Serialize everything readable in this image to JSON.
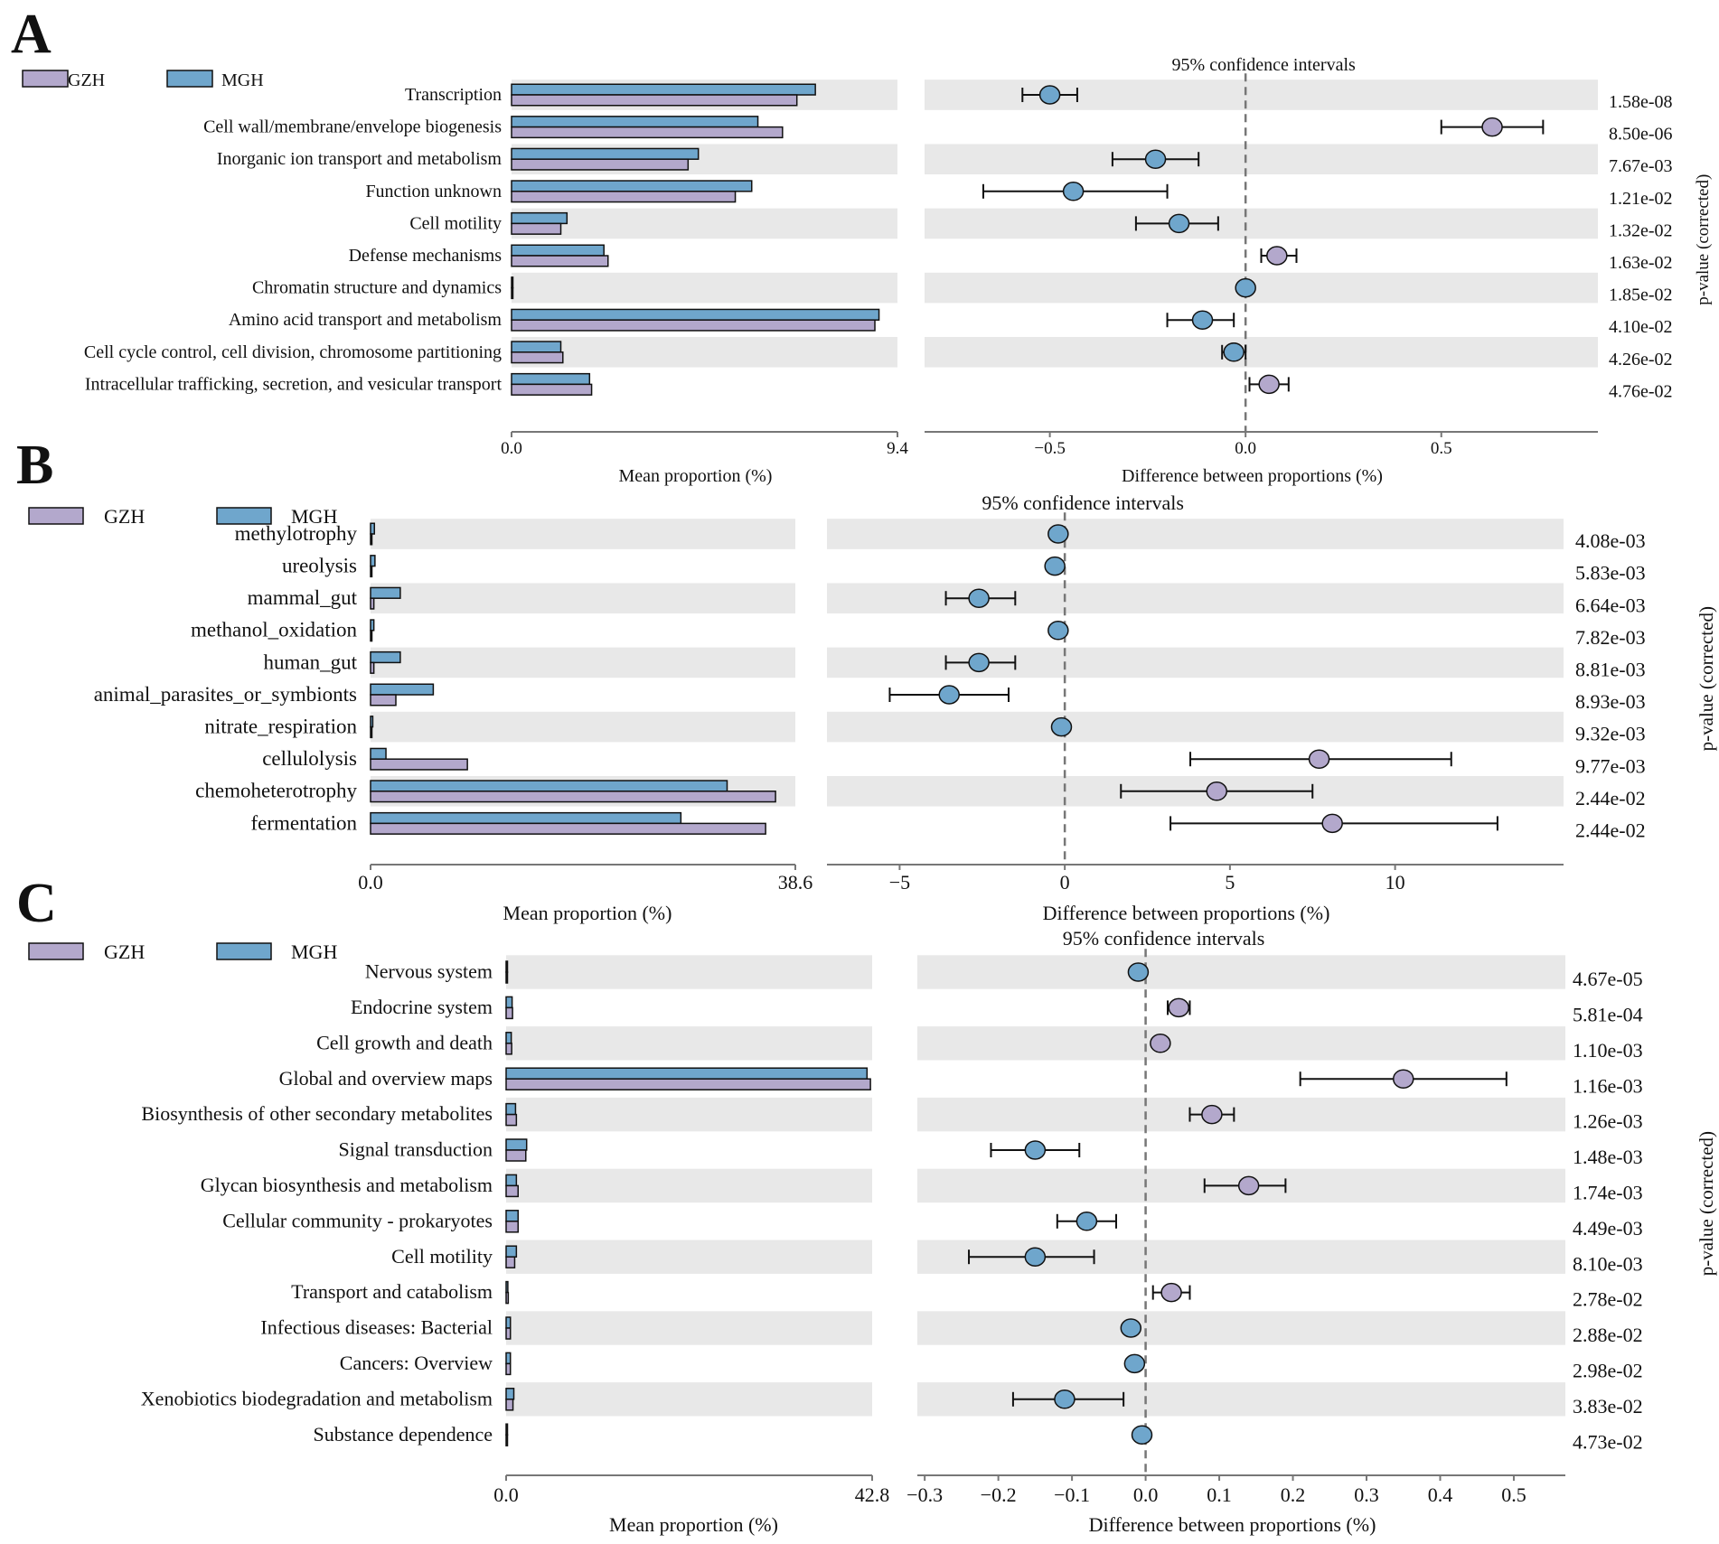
{
  "colors": {
    "gzh": "#b3a8cc",
    "mgh": "#6fa6cc",
    "stripe": "#e8e8e8",
    "axis": "#777777",
    "zero_line": "#777777",
    "text": "#111111"
  },
  "chart_data": [
    {
      "type": "bar",
      "panel_label": "A",
      "legend": [
        "GZH",
        "MGH"
      ],
      "ci_title": "95% confidence intervals",
      "categories": [
        "Transcription",
        "Cell wall/membrane/envelope biogenesis",
        "Inorganic ion transport and metabolism",
        "Function unknown",
        "Cell motility",
        "Defense mechanisms",
        "Chromatin structure and dynamics",
        "Amino acid transport and metabolism",
        "Cell cycle control, cell division, chromosome partitioning",
        "Intracellular trafficking, secretion, and vesicular transport"
      ],
      "series": [
        {
          "name": "MGH",
          "values": [
            7.4,
            6.0,
            4.55,
            5.85,
            1.35,
            2.25,
            0.02,
            8.95,
            1.2,
            1.9
          ]
        },
        {
          "name": "GZH",
          "values": [
            6.95,
            6.6,
            4.3,
            5.45,
            1.2,
            2.35,
            0.02,
            8.85,
            1.25,
            1.95
          ]
        }
      ],
      "mean_axis": {
        "label": "Mean proportion (%)",
        "min": 0,
        "max": 9.4,
        "ticks": [
          "0.0",
          "9.4"
        ]
      },
      "diff_axis": {
        "label": "Difference between proportions (%)",
        "min": -0.82,
        "max": 0.9,
        "ticks": [
          -0.5,
          0.0,
          0.5
        ],
        "tick_labels": [
          "−0.5",
          "0.0",
          "0.5"
        ]
      },
      "differences": [
        {
          "estimate": -0.5,
          "lower": -0.57,
          "upper": -0.43,
          "higher_group": "MGH"
        },
        {
          "estimate": 0.63,
          "lower": 0.5,
          "upper": 0.76,
          "higher_group": "GZH"
        },
        {
          "estimate": -0.23,
          "lower": -0.34,
          "upper": -0.12,
          "higher_group": "MGH"
        },
        {
          "estimate": -0.44,
          "lower": -0.67,
          "upper": -0.2,
          "higher_group": "MGH"
        },
        {
          "estimate": -0.17,
          "lower": -0.28,
          "upper": -0.07,
          "higher_group": "MGH"
        },
        {
          "estimate": 0.08,
          "lower": 0.04,
          "upper": 0.13,
          "higher_group": "GZH"
        },
        {
          "estimate": 0.0,
          "lower": 0.0,
          "upper": 0.0,
          "higher_group": "MGH"
        },
        {
          "estimate": -0.11,
          "lower": -0.2,
          "upper": -0.03,
          "higher_group": "MGH"
        },
        {
          "estimate": -0.03,
          "lower": -0.06,
          "upper": 0.0,
          "higher_group": "MGH"
        },
        {
          "estimate": 0.06,
          "lower": 0.01,
          "upper": 0.11,
          "higher_group": "GZH"
        }
      ],
      "p_values": [
        "1.58e-08",
        "8.50e-06",
        "7.67e-03",
        "1.21e-02",
        "1.32e-02",
        "1.63e-02",
        "1.85e-02",
        "4.10e-02",
        "4.26e-02",
        "4.76e-02"
      ],
      "p_label": "p-value (corrected)"
    },
    {
      "type": "bar",
      "panel_label": "B",
      "legend": [
        "GZH",
        "MGH"
      ],
      "ci_title": "95% confidence intervals",
      "categories": [
        "methylotrophy",
        "ureolysis",
        "mammal_gut",
        "methanol_oxidation",
        "human_gut",
        "animal_parasites_or_symbionts",
        "nitrate_respiration",
        "cellulolysis",
        "chemoheterotrophy",
        "fermentation"
      ],
      "series": [
        {
          "name": "MGH",
          "values": [
            0.35,
            0.4,
            2.7,
            0.3,
            2.7,
            5.7,
            0.2,
            1.4,
            32.4,
            28.2
          ]
        },
        {
          "name": "GZH",
          "values": [
            0.1,
            0.1,
            0.3,
            0.1,
            0.3,
            2.3,
            0.1,
            8.8,
            36.8,
            35.9
          ]
        }
      ],
      "mean_axis": {
        "label": "Mean proportion (%)",
        "min": 0,
        "max": 38.6,
        "ticks": [
          "0.0",
          "38.6"
        ]
      },
      "diff_axis": {
        "label": "Difference between proportions (%)",
        "min": -7.2,
        "max": 15.1,
        "ticks": [
          -5,
          0,
          5,
          10
        ],
        "tick_labels": [
          "−5",
          "0",
          "5",
          "10"
        ]
      },
      "differences": [
        {
          "estimate": -0.2,
          "lower": -0.2,
          "upper": -0.2,
          "higher_group": "MGH"
        },
        {
          "estimate": -0.3,
          "lower": -0.3,
          "upper": -0.3,
          "higher_group": "MGH"
        },
        {
          "estimate": -2.6,
          "lower": -3.6,
          "upper": -1.5,
          "higher_group": "MGH"
        },
        {
          "estimate": -0.2,
          "lower": -0.2,
          "upper": -0.2,
          "higher_group": "MGH"
        },
        {
          "estimate": -2.6,
          "lower": -3.6,
          "upper": -1.5,
          "higher_group": "MGH"
        },
        {
          "estimate": -3.5,
          "lower": -5.3,
          "upper": -1.7,
          "higher_group": "MGH"
        },
        {
          "estimate": -0.1,
          "lower": -0.1,
          "upper": -0.1,
          "higher_group": "MGH"
        },
        {
          "estimate": 7.7,
          "lower": 3.8,
          "upper": 11.7,
          "higher_group": "GZH"
        },
        {
          "estimate": 4.6,
          "lower": 1.7,
          "upper": 7.5,
          "higher_group": "GZH"
        },
        {
          "estimate": 8.1,
          "lower": 3.2,
          "upper": 13.1,
          "higher_group": "GZH"
        }
      ],
      "p_values": [
        "4.08e-03",
        "5.83e-03",
        "6.64e-03",
        "7.82e-03",
        "8.81e-03",
        "8.93e-03",
        "9.32e-03",
        "9.77e-03",
        "2.44e-02",
        "2.44e-02"
      ],
      "p_label": "p-value (corrected)"
    },
    {
      "type": "bar",
      "panel_label": "C",
      "legend": [
        "GZH",
        "MGH"
      ],
      "ci_title": "95% confidence intervals",
      "categories": [
        "Nervous system",
        "Endocrine system",
        "Cell growth and death",
        "Global and overview maps",
        "Biosynthesis of other secondary metabolites",
        "Signal transduction",
        "Glycan biosynthesis and metabolism",
        "Cellular community - prokaryotes",
        "Cell motility",
        "Transport and catabolism",
        "Infectious diseases: Bacterial",
        "Cancers: Overview",
        "Xenobiotics biodegradation and metabolism",
        "Substance dependence"
      ],
      "series": [
        {
          "name": "MGH",
          "values": [
            0.1,
            0.7,
            0.6,
            42.2,
            1.1,
            2.4,
            1.2,
            1.4,
            1.2,
            0.2,
            0.5,
            0.5,
            0.9,
            0.05
          ]
        },
        {
          "name": "GZH",
          "values": [
            0.1,
            0.75,
            0.65,
            42.6,
            1.2,
            2.3,
            1.4,
            1.4,
            1.0,
            0.25,
            0.5,
            0.5,
            0.8,
            0.05
          ]
        }
      ],
      "mean_axis": {
        "label": "Mean proportion (%)",
        "min": 0,
        "max": 42.8,
        "ticks": [
          "0.0",
          "42.8"
        ]
      },
      "diff_axis": {
        "label": "Difference between proportions (%)",
        "min": -0.31,
        "max": 0.57,
        "ticks": [
          -0.3,
          -0.2,
          -0.1,
          0.0,
          0.1,
          0.2,
          0.3,
          0.4,
          0.5
        ],
        "tick_labels": [
          "−0.3",
          "−0.2",
          "−0.1",
          "0.0",
          "0.1",
          "0.2",
          "0.3",
          "0.4",
          "0.5"
        ]
      },
      "differences": [
        {
          "estimate": -0.01,
          "lower": -0.01,
          "upper": -0.01,
          "higher_group": "MGH"
        },
        {
          "estimate": 0.045,
          "lower": 0.03,
          "upper": 0.06,
          "higher_group": "GZH"
        },
        {
          "estimate": 0.02,
          "lower": 0.02,
          "upper": 0.02,
          "higher_group": "GZH"
        },
        {
          "estimate": 0.35,
          "lower": 0.21,
          "upper": 0.49,
          "higher_group": "GZH"
        },
        {
          "estimate": 0.09,
          "lower": 0.06,
          "upper": 0.12,
          "higher_group": "GZH"
        },
        {
          "estimate": -0.15,
          "lower": -0.21,
          "upper": -0.09,
          "higher_group": "MGH"
        },
        {
          "estimate": 0.14,
          "lower": 0.08,
          "upper": 0.19,
          "higher_group": "GZH"
        },
        {
          "estimate": -0.08,
          "lower": -0.12,
          "upper": -0.04,
          "higher_group": "MGH"
        },
        {
          "estimate": -0.15,
          "lower": -0.24,
          "upper": -0.07,
          "higher_group": "MGH"
        },
        {
          "estimate": 0.035,
          "lower": 0.01,
          "upper": 0.06,
          "higher_group": "GZH"
        },
        {
          "estimate": -0.02,
          "lower": -0.02,
          "upper": -0.02,
          "higher_group": "MGH"
        },
        {
          "estimate": -0.015,
          "lower": -0.015,
          "upper": -0.015,
          "higher_group": "MGH"
        },
        {
          "estimate": -0.11,
          "lower": -0.18,
          "upper": -0.03,
          "higher_group": "MGH"
        },
        {
          "estimate": -0.005,
          "lower": -0.005,
          "upper": -0.005,
          "higher_group": "MGH"
        }
      ],
      "p_values": [
        "4.67e-05",
        "5.81e-04",
        "1.10e-03",
        "1.16e-03",
        "1.26e-03",
        "1.48e-03",
        "1.74e-03",
        "4.49e-03",
        "8.10e-03",
        "2.78e-02",
        "2.88e-02",
        "2.98e-02",
        "3.83e-02",
        "4.73e-02"
      ],
      "p_label": "p-value (corrected)"
    }
  ]
}
